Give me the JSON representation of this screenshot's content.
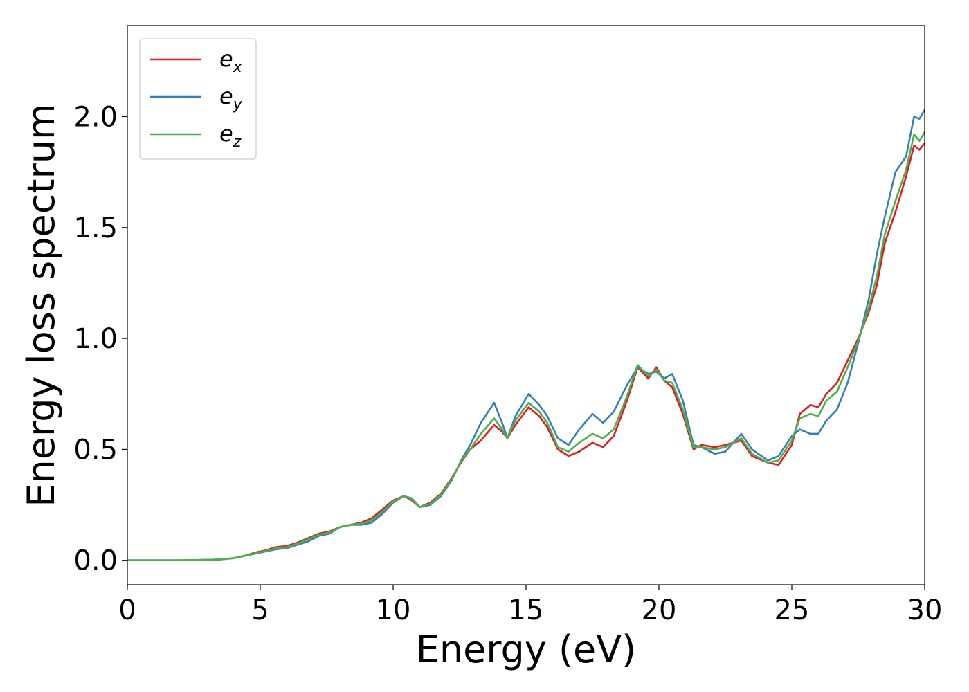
{
  "chart_data": {
    "type": "line",
    "title": "",
    "xlabel": "Energy (eV)",
    "ylabel": "Energy loss spectrum",
    "xlim": [
      0,
      30
    ],
    "ylim": [
      -0.11,
      2.41
    ],
    "xticks": [
      0,
      5,
      10,
      15,
      20,
      25,
      30
    ],
    "xtick_labels": [
      "0",
      "5",
      "10",
      "15",
      "20",
      "25",
      "30"
    ],
    "yticks": [
      0.0,
      0.5,
      1.0,
      1.5,
      2.0
    ],
    "ytick_labels": [
      "0.0",
      "0.5",
      "1.0",
      "1.5",
      "2.0"
    ],
    "grid": false,
    "legend_position": "top-left",
    "series": [
      {
        "name": "e_x",
        "legend_base": "e",
        "legend_sub": "x",
        "color": "#e41a1c",
        "x": [
          0,
          1,
          2,
          3,
          3.5,
          4,
          4.4,
          4.8,
          5.2,
          5.6,
          6.0,
          6.4,
          6.8,
          7.2,
          7.6,
          8.0,
          8.4,
          8.8,
          9.2,
          9.6,
          10.0,
          10.4,
          10.7,
          11.0,
          11.4,
          11.8,
          12.2,
          12.6,
          12.9,
          13.3,
          13.8,
          14.1,
          14.3,
          14.6,
          15.1,
          15.5,
          15.8,
          16.2,
          16.6,
          17.0,
          17.5,
          17.9,
          18.3,
          18.8,
          19.2,
          19.6,
          19.9,
          20.2,
          20.5,
          20.9,
          21.3,
          21.6,
          22.1,
          22.5,
          23.1,
          23.5,
          24.1,
          24.5,
          25.0,
          25.3,
          25.7,
          26.0,
          26.3,
          26.7,
          27.1,
          27.5,
          27.9,
          28.2,
          28.5,
          28.9,
          29.3,
          29.6,
          29.8,
          30.0
        ],
        "y": [
          0.0,
          0.0,
          0.0,
          0.002,
          0.004,
          0.01,
          0.02,
          0.035,
          0.045,
          0.06,
          0.065,
          0.08,
          0.1,
          0.12,
          0.13,
          0.15,
          0.16,
          0.17,
          0.19,
          0.23,
          0.27,
          0.29,
          0.27,
          0.24,
          0.26,
          0.3,
          0.37,
          0.45,
          0.5,
          0.54,
          0.61,
          0.58,
          0.55,
          0.61,
          0.69,
          0.65,
          0.6,
          0.5,
          0.47,
          0.49,
          0.53,
          0.51,
          0.56,
          0.72,
          0.87,
          0.82,
          0.87,
          0.81,
          0.78,
          0.66,
          0.5,
          0.52,
          0.51,
          0.52,
          0.54,
          0.47,
          0.44,
          0.43,
          0.52,
          0.66,
          0.7,
          0.69,
          0.75,
          0.8,
          0.9,
          1.0,
          1.12,
          1.24,
          1.43,
          1.57,
          1.73,
          1.87,
          1.85,
          1.88
        ]
      },
      {
        "name": "e_y",
        "legend_base": "e",
        "legend_sub": "y",
        "color": "#377eb8",
        "x": [
          0,
          1,
          2,
          3,
          3.5,
          4,
          4.4,
          4.8,
          5.2,
          5.6,
          6.0,
          6.4,
          6.8,
          7.2,
          7.6,
          8.0,
          8.4,
          8.8,
          9.2,
          9.6,
          10.0,
          10.4,
          10.7,
          11.0,
          11.4,
          11.8,
          12.2,
          12.6,
          12.9,
          13.3,
          13.8,
          14.1,
          14.3,
          14.6,
          15.1,
          15.5,
          15.8,
          16.2,
          16.6,
          17.0,
          17.5,
          17.9,
          18.3,
          18.8,
          19.2,
          19.6,
          19.9,
          20.2,
          20.5,
          20.9,
          21.3,
          21.6,
          22.1,
          22.5,
          23.1,
          23.5,
          24.1,
          24.5,
          25.0,
          25.3,
          25.7,
          26.0,
          26.3,
          26.7,
          27.1,
          27.5,
          27.9,
          28.2,
          28.5,
          28.9,
          29.3,
          29.6,
          29.8,
          30.0
        ],
        "y": [
          0.0,
          0.0,
          0.0,
          0.002,
          0.004,
          0.01,
          0.02,
          0.03,
          0.04,
          0.05,
          0.055,
          0.07,
          0.085,
          0.11,
          0.12,
          0.15,
          0.16,
          0.16,
          0.17,
          0.21,
          0.26,
          0.29,
          0.28,
          0.24,
          0.25,
          0.29,
          0.36,
          0.46,
          0.52,
          0.62,
          0.71,
          0.62,
          0.55,
          0.65,
          0.75,
          0.7,
          0.65,
          0.55,
          0.52,
          0.59,
          0.66,
          0.62,
          0.67,
          0.79,
          0.87,
          0.84,
          0.85,
          0.82,
          0.84,
          0.72,
          0.52,
          0.51,
          0.48,
          0.49,
          0.57,
          0.5,
          0.45,
          0.47,
          0.56,
          0.59,
          0.57,
          0.57,
          0.63,
          0.68,
          0.8,
          0.98,
          1.18,
          1.38,
          1.55,
          1.75,
          1.82,
          2.0,
          1.99,
          2.03
        ]
      },
      {
        "name": "e_z",
        "legend_base": "e",
        "legend_sub": "z",
        "color": "#4daf4a",
        "x": [
          0,
          1,
          2,
          3,
          3.5,
          4,
          4.4,
          4.8,
          5.2,
          5.6,
          6.0,
          6.4,
          6.8,
          7.2,
          7.6,
          8.0,
          8.4,
          8.8,
          9.2,
          9.6,
          10.0,
          10.4,
          10.7,
          11.0,
          11.4,
          11.8,
          12.2,
          12.6,
          12.9,
          13.3,
          13.8,
          14.1,
          14.3,
          14.6,
          15.1,
          15.5,
          15.8,
          16.2,
          16.6,
          17.0,
          17.5,
          17.9,
          18.3,
          18.8,
          19.2,
          19.6,
          19.9,
          20.2,
          20.5,
          20.9,
          21.3,
          21.6,
          22.1,
          22.5,
          23.1,
          23.5,
          24.1,
          24.5,
          25.0,
          25.3,
          25.7,
          26.0,
          26.3,
          26.7,
          27.1,
          27.5,
          27.9,
          28.2,
          28.5,
          28.9,
          29.3,
          29.6,
          29.8,
          30.0
        ],
        "y": [
          0.0,
          0.0,
          0.0,
          0.002,
          0.004,
          0.01,
          0.02,
          0.032,
          0.042,
          0.055,
          0.06,
          0.075,
          0.095,
          0.115,
          0.125,
          0.15,
          0.16,
          0.165,
          0.18,
          0.22,
          0.265,
          0.29,
          0.275,
          0.24,
          0.255,
          0.295,
          0.365,
          0.455,
          0.5,
          0.57,
          0.64,
          0.59,
          0.55,
          0.63,
          0.71,
          0.67,
          0.62,
          0.51,
          0.49,
          0.53,
          0.57,
          0.55,
          0.59,
          0.74,
          0.88,
          0.83,
          0.86,
          0.81,
          0.8,
          0.68,
          0.51,
          0.51,
          0.5,
          0.51,
          0.55,
          0.48,
          0.44,
          0.45,
          0.54,
          0.64,
          0.66,
          0.65,
          0.72,
          0.76,
          0.87,
          0.99,
          1.14,
          1.28,
          1.47,
          1.62,
          1.76,
          1.92,
          1.89,
          1.93
        ]
      }
    ]
  }
}
